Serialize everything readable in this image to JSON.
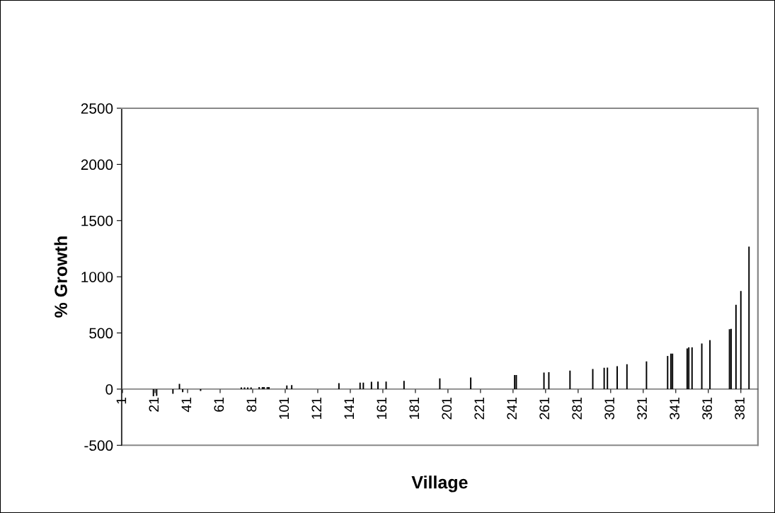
{
  "chart_data": {
    "type": "bar",
    "xlabel": "Village",
    "ylabel": "% Growth",
    "color": "#000000",
    "ylim": [
      -500,
      2500
    ],
    "yticks": [
      -500,
      0,
      500,
      1000,
      1500,
      2000,
      2500
    ],
    "grid": false,
    "legend": false,
    "categories": [
      "1",
      null,
      null,
      null,
      null,
      null,
      null,
      null,
      null,
      null,
      null,
      null,
      null,
      null,
      null,
      null,
      null,
      null,
      null,
      null,
      "21",
      null,
      null,
      null,
      null,
      null,
      null,
      null,
      null,
      null,
      null,
      null,
      null,
      null,
      null,
      null,
      null,
      null,
      null,
      null,
      "41",
      null,
      null,
      null,
      null,
      null,
      null,
      null,
      null,
      null,
      null,
      null,
      null,
      null,
      null,
      null,
      null,
      null,
      null,
      null,
      "61",
      null,
      null,
      null,
      null,
      null,
      null,
      null,
      null,
      null,
      null,
      null,
      null,
      null,
      null,
      null,
      null,
      null,
      null,
      null,
      "81",
      null,
      null,
      null,
      null,
      null,
      null,
      null,
      null,
      null,
      null,
      null,
      null,
      null,
      null,
      null,
      null,
      null,
      null,
      null,
      "101",
      null,
      null,
      null,
      null,
      null,
      null,
      null,
      null,
      null,
      null,
      null,
      null,
      null,
      null,
      null,
      null,
      null,
      null,
      null,
      "121",
      null,
      null,
      null,
      null,
      null,
      null,
      null,
      null,
      null,
      null,
      null,
      null,
      null,
      null,
      null,
      null,
      null,
      null,
      null,
      "141",
      null,
      null,
      null,
      null,
      null,
      null,
      null,
      null,
      null,
      null,
      null,
      null,
      null,
      null,
      null,
      null,
      null,
      null,
      null,
      "161",
      null,
      null,
      null,
      null,
      null,
      null,
      null,
      null,
      null,
      null,
      null,
      null,
      null,
      null,
      null,
      null,
      null,
      null,
      null,
      "181",
      null,
      null,
      null,
      null,
      null,
      null,
      null,
      null,
      null,
      null,
      null,
      null,
      null,
      null,
      null,
      null,
      null,
      null,
      null,
      "201",
      null,
      null,
      null,
      null,
      null,
      null,
      null,
      null,
      null,
      null,
      null,
      null,
      null,
      null,
      null,
      null,
      null,
      null,
      null,
      "221",
      null,
      null,
      null,
      null,
      null,
      null,
      null,
      null,
      null,
      null,
      null,
      null,
      null,
      null,
      null,
      null,
      null,
      null,
      null,
      "241",
      null,
      null,
      null,
      null,
      null,
      null,
      null,
      null,
      null,
      null,
      null,
      null,
      null,
      null,
      null,
      null,
      null,
      null,
      null,
      "261",
      null,
      null,
      null,
      null,
      null,
      null,
      null,
      null,
      null,
      null,
      null,
      null,
      null,
      null,
      null,
      null,
      null,
      null,
      null,
      "281",
      null,
      null,
      null,
      null,
      null,
      null,
      null,
      null,
      null,
      null,
      null,
      null,
      null,
      null,
      null,
      null,
      null,
      null,
      null,
      "301",
      null,
      null,
      null,
      null,
      null,
      null,
      null,
      null,
      null,
      null,
      null,
      null,
      null,
      null,
      null,
      null,
      null,
      null,
      null,
      "321",
      null,
      null,
      null,
      null,
      null,
      null,
      null,
      null,
      null,
      null,
      null,
      null,
      null,
      null,
      null,
      null,
      null,
      null,
      null,
      "341",
      null,
      null,
      null,
      null,
      null,
      null,
      null,
      null,
      null,
      null,
      null,
      null,
      null,
      null,
      null,
      null,
      null,
      null,
      null,
      "361",
      null,
      null,
      null,
      null,
      null,
      null,
      null,
      null,
      null,
      null,
      null,
      null,
      null,
      null,
      null,
      null,
      null,
      null,
      null,
      "381",
      null,
      null,
      null,
      null,
      null,
      null,
      null,
      null,
      null,
      null
    ],
    "values": [
      null,
      null,
      null,
      null,
      null,
      null,
      null,
      null,
      null,
      null,
      null,
      null,
      null,
      null,
      null,
      null,
      null,
      null,
      null,
      -63,
      null,
      -60,
      null,
      null,
      null,
      null,
      null,
      null,
      null,
      null,
      null,
      -42,
      null,
      null,
      null,
      46,
      null,
      -27,
      null,
      null,
      null,
      null,
      null,
      null,
      null,
      null,
      null,
      null,
      -17,
      null,
      null,
      null,
      null,
      null,
      null,
      null,
      null,
      null,
      null,
      null,
      null,
      null,
      null,
      null,
      null,
      null,
      null,
      null,
      null,
      null,
      null,
      null,
      null,
      15,
      null,
      15,
      null,
      15,
      null,
      15,
      null,
      null,
      null,
      null,
      18,
      null,
      18,
      18,
      null,
      18,
      18,
      null,
      null,
      null,
      null,
      null,
      null,
      null,
      null,
      null,
      null,
      32,
      null,
      null,
      36,
      null,
      null,
      null,
      null,
      null,
      null,
      null,
      null,
      null,
      null,
      null,
      null,
      null,
      null,
      null,
      null,
      null,
      null,
      null,
      null,
      null,
      null,
      null,
      null,
      null,
      null,
      null,
      null,
      53,
      null,
      null,
      null,
      null,
      null,
      null,
      null,
      null,
      null,
      null,
      null,
      null,
      57,
      null,
      57,
      null,
      null,
      null,
      null,
      65,
      null,
      null,
      null,
      67,
      null,
      null,
      null,
      null,
      67,
      null,
      null,
      null,
      null,
      null,
      null,
      null,
      null,
      null,
      null,
      74,
      null,
      null,
      null,
      null,
      null,
      null,
      null,
      null,
      null,
      null,
      null,
      null,
      null,
      null,
      null,
      null,
      null,
      null,
      null,
      null,
      null,
      95,
      null,
      null,
      null,
      null,
      null,
      null,
      null,
      null,
      null,
      null,
      null,
      null,
      null,
      null,
      null,
      null,
      null,
      null,
      103,
      null,
      null,
      null,
      null,
      null,
      null,
      null,
      null,
      null,
      null,
      null,
      null,
      null,
      null,
      null,
      null,
      null,
      null,
      null,
      null,
      null,
      null,
      null,
      null,
      null,
      null,
      126,
      126,
      null,
      null,
      null,
      null,
      null,
      null,
      null,
      null,
      null,
      null,
      null,
      null,
      null,
      null,
      null,
      null,
      147,
      null,
      null,
      150,
      null,
      null,
      null,
      null,
      null,
      null,
      null,
      null,
      null,
      null,
      null,
      null,
      164,
      null,
      null,
      null,
      null,
      null,
      null,
      null,
      null,
      null,
      null,
      null,
      null,
      null,
      179,
      null,
      null,
      null,
      null,
      null,
      null,
      190,
      null,
      191,
      null,
      null,
      null,
      null,
      null,
      204,
      null,
      null,
      null,
      null,
      null,
      221,
      null,
      null,
      null,
      null,
      null,
      null,
      null,
      null,
      null,
      null,
      null,
      246,
      null,
      null,
      null,
      null,
      null,
      null,
      null,
      null,
      null,
      null,
      null,
      null,
      295,
      null,
      316,
      316,
      null,
      null,
      null,
      null,
      null,
      null,
      null,
      null,
      362,
      372,
      null,
      372,
      null,
      null,
      null,
      null,
      null,
      406,
      null,
      null,
      null,
      null,
      436,
      null,
      null,
      null,
      null,
      null,
      null,
      null,
      null,
      null,
      null,
      null,
      533,
      537,
      null,
      null,
      751,
      null,
      null,
      873,
      null,
      null,
      null,
      null,
      1269,
      null,
      null,
      null,
      null,
      null
    ]
  }
}
